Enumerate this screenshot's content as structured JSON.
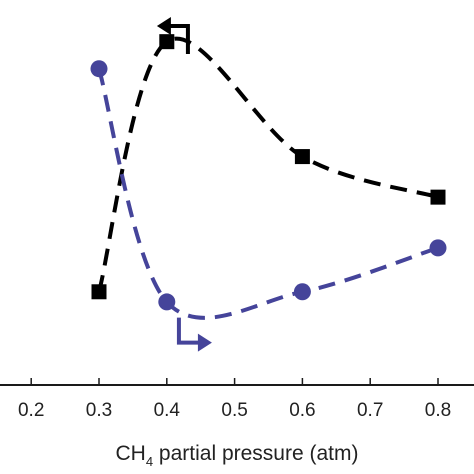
{
  "chart_data": {
    "type": "line",
    "xlabel_main": "CH",
    "xlabel_subscript": "4",
    "xlabel_rest": " partial pressure (atm)",
    "xlim": [
      0.15,
      0.85
    ],
    "x_ticks": [
      "0.2",
      "0.3",
      "0.4",
      "0.5",
      "0.6",
      "0.7",
      "0.8"
    ],
    "y_ticks": [],
    "series": [
      {
        "color": "#000000",
        "marker": "square",
        "line_style": "dashed",
        "axis": "left",
        "x": [
          0.3,
          0.4,
          0.6,
          0.8
        ],
        "y": [
          0.19,
          0.93,
          0.59,
          0.47
        ]
      },
      {
        "color": "#45449a",
        "marker": "circle",
        "line_style": "dashed",
        "axis": "right",
        "x": [
          0.3,
          0.4,
          0.6,
          0.8
        ],
        "y": [
          0.85,
          0.16,
          0.19,
          0.32
        ]
      }
    ],
    "annotations": [
      {
        "type": "axis-arrow",
        "direction": "left",
        "color": "#000000",
        "x": 0.44,
        "y": 1.0
      },
      {
        "type": "axis-arrow",
        "direction": "right",
        "color": "#45449a",
        "x": 0.44,
        "y": 0.09
      }
    ]
  }
}
